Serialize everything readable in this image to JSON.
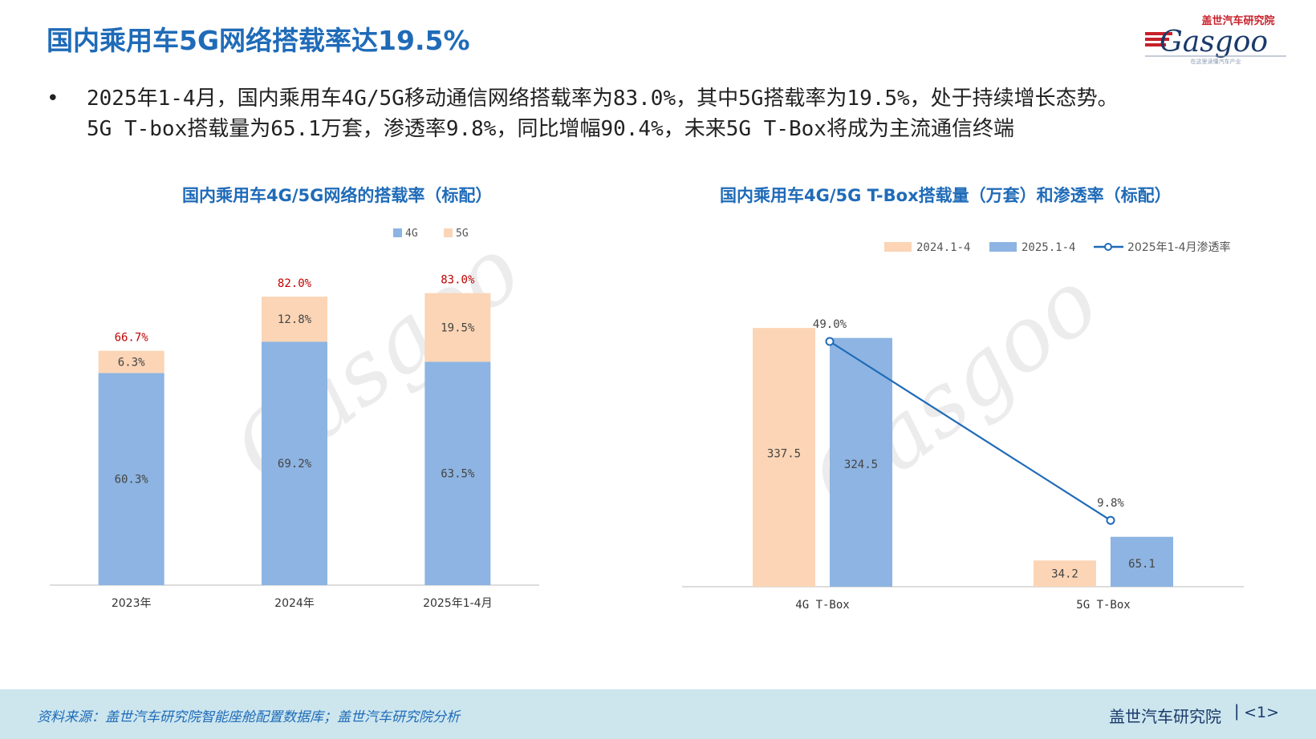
{
  "title": "国内乘用车5G网络搭载率达19.5%",
  "logo": {
    "brand": "Gasgoo",
    "cn": "盖世汽车研究院",
    "tagline": "在这里读懂汽车产业"
  },
  "bullet": {
    "line1": "2025年1-4月，国内乘用车4G/5G移动通信网络搭载率为83.0%，其中5G搭载率为19.5%，处于持续增长态势。",
    "line2": "5G T-box搭载量为65.1万套，渗透率9.8%，同比增幅90.4%，未来5G T-Box将成为主流通信终端"
  },
  "colors": {
    "blue": "#8db4e2",
    "orange": "#fbd5b5",
    "line": "#1f6bb8",
    "title": "#1f6bb8",
    "red": "#c00000"
  },
  "chart_data": [
    {
      "type": "bar",
      "stacked": true,
      "title": "国内乘用车4G/5G网络的搭载率（标配）",
      "categories": [
        "2023年",
        "2024年",
        "2025年1-4月"
      ],
      "series": [
        {
          "name": "4G",
          "values": [
            60.3,
            69.2,
            63.5
          ],
          "labels": [
            "60.3%",
            "69.2%",
            "63.5%"
          ]
        },
        {
          "name": "5G",
          "values": [
            6.3,
            12.8,
            19.5
          ],
          "labels": [
            "6.3%",
            "12.8%",
            "19.5%"
          ]
        }
      ],
      "totals": [
        "66.7%",
        "82.0%",
        "83.0%"
      ],
      "ylim": [
        0,
        90
      ],
      "legend": "top-right"
    },
    {
      "type": "bar",
      "title": "国内乘用车4G/5G T-Box搭载量（万套）和渗透率（标配）",
      "categories": [
        "4G T-Box",
        "5G T-Box"
      ],
      "series": [
        {
          "name": "2024.1-4",
          "values": [
            337.5,
            34.2
          ],
          "labels": [
            "337.5",
            "34.2"
          ]
        },
        {
          "name": "2025.1-4",
          "values": [
            324.5,
            65.1
          ],
          "labels": [
            "324.5",
            "65.1"
          ]
        },
        {
          "name": "2025年1-4月渗透率",
          "type": "line",
          "values": [
            49.0,
            9.8
          ],
          "labels": [
            "49.0%",
            "9.8%"
          ]
        }
      ],
      "ylim": [
        0,
        345
      ],
      "legend": "top"
    }
  ],
  "footer": {
    "source": "资料来源：盖世汽车研究院智能座舱配置数据库；盖世汽车研究院分析",
    "org": "盖世汽车研究院",
    "page": "<1>"
  }
}
